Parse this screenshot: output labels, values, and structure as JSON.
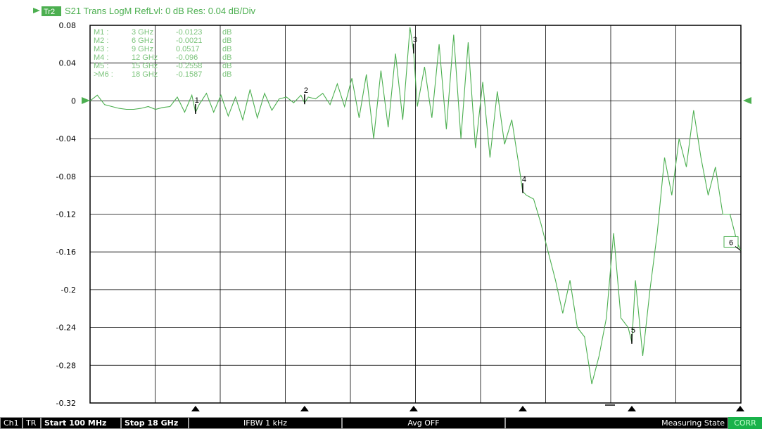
{
  "trace": {
    "badge": "Tr2",
    "title": "S21 Trans LogM RefLvl: 0 dB Res: 0.04 dB/Div"
  },
  "markers": [
    {
      "id": "1",
      "label": "M1 :",
      "freq": "3 GHz",
      "value": "-0.0123",
      "unit": "dB"
    },
    {
      "id": "2",
      "label": "M2 :",
      "freq": "6 GHz",
      "value": "-0.0021",
      "unit": "dB"
    },
    {
      "id": "3",
      "label": "M3 :",
      "freq": "9 GHz",
      "value": "0.0517",
      "unit": "dB"
    },
    {
      "id": "4",
      "label": "M4 :",
      "freq": "12 GHz",
      "value": "-0.096",
      "unit": "dB"
    },
    {
      "id": "5",
      "label": "M5 :",
      "freq": "15 GHz",
      "value": "-0.2558",
      "unit": "dB"
    },
    {
      "id": "6",
      "label": ">M6 :",
      "freq": "18 GHz",
      "value": "-0.1587",
      "unit": "dB"
    }
  ],
  "status_bar": {
    "channel": "Ch1",
    "trace_mode": "TR",
    "start": "Start 100 MHz",
    "stop": "Stop 18 GHz",
    "ifbw": "IFBW 1 kHz",
    "avg": "Avg OFF",
    "state": "Measuring State",
    "corr": "CORR"
  },
  "colors": {
    "trace": "#4caf50",
    "grid": "#000000",
    "background": "#ffffff",
    "status_bg": "#000000",
    "corr_bg": "#19b24a"
  },
  "chart_data": {
    "type": "line",
    "title": "S21 Trans LogM RefLvl: 0 dB Res: 0.04 dB/Div",
    "xlabel": "",
    "ylabel": "",
    "xlim": [
      0.1,
      18
    ],
    "ylim": [
      -0.32,
      0.08
    ],
    "y_ticks": [
      "0.08",
      "0.04",
      "0",
      "-0.04",
      "-0.08",
      "-0.12",
      "-0.16",
      "-0.2",
      "-0.24",
      "-0.28",
      "-0.32"
    ],
    "grid": true,
    "x_divisions": 10,
    "reference_level": 0,
    "series": [
      {
        "color": "#4caf50",
        "x": [
          0.1,
          0.3,
          0.5,
          0.7,
          0.9,
          1.1,
          1.3,
          1.5,
          1.7,
          1.9,
          2.1,
          2.3,
          2.5,
          2.7,
          2.9,
          3.0,
          3.1,
          3.3,
          3.5,
          3.7,
          3.9,
          4.1,
          4.3,
          4.5,
          4.7,
          4.9,
          5.1,
          5.3,
          5.5,
          5.7,
          5.9,
          6.0,
          6.1,
          6.3,
          6.5,
          6.7,
          6.9,
          7.1,
          7.3,
          7.5,
          7.7,
          7.9,
          8.1,
          8.3,
          8.5,
          8.7,
          8.9,
          9.0,
          9.1,
          9.3,
          9.5,
          9.7,
          9.9,
          10.1,
          10.3,
          10.5,
          10.7,
          10.9,
          11.1,
          11.3,
          11.5,
          11.7,
          11.9,
          12.0,
          12.1,
          12.3,
          12.5,
          12.7,
          12.9,
          13.1,
          13.3,
          13.5,
          13.7,
          13.9,
          14.1,
          14.3,
          14.5,
          14.7,
          14.9,
          15.0,
          15.1,
          15.3,
          15.5,
          15.7,
          15.9,
          16.1,
          16.3,
          16.5,
          16.7,
          16.9,
          17.1,
          17.3,
          17.5,
          17.7,
          17.9,
          18.0
        ],
        "values": [
          0.0,
          0.006,
          -0.004,
          -0.006,
          -0.008,
          -0.009,
          -0.009,
          -0.008,
          -0.006,
          -0.009,
          -0.007,
          -0.006,
          0.004,
          -0.012,
          0.006,
          -0.0123,
          -0.004,
          0.008,
          -0.012,
          0.006,
          -0.016,
          0.004,
          -0.02,
          0.012,
          -0.018,
          0.008,
          -0.01,
          0.002,
          0.004,
          -0.002,
          0.006,
          -0.0021,
          0.004,
          0.002,
          0.008,
          -0.004,
          0.018,
          -0.006,
          0.024,
          -0.018,
          0.028,
          -0.04,
          0.032,
          -0.028,
          0.05,
          -0.02,
          0.078,
          0.0517,
          -0.006,
          0.036,
          -0.018,
          0.06,
          -0.03,
          0.07,
          -0.04,
          0.062,
          -0.05,
          0.02,
          -0.06,
          0.01,
          -0.046,
          -0.02,
          -0.07,
          -0.096,
          -0.1,
          -0.104,
          -0.13,
          -0.16,
          -0.19,
          -0.225,
          -0.19,
          -0.24,
          -0.25,
          -0.3,
          -0.27,
          -0.23,
          -0.14,
          -0.23,
          -0.24,
          -0.2558,
          -0.19,
          -0.27,
          -0.2,
          -0.14,
          -0.06,
          -0.1,
          -0.04,
          -0.07,
          -0.01,
          -0.06,
          -0.1,
          -0.07,
          -0.12,
          -0.12,
          -0.15,
          -0.1587
        ]
      }
    ],
    "marker_points": [
      {
        "id": "1",
        "x": 3,
        "y": -0.0123
      },
      {
        "id": "2",
        "x": 6,
        "y": -0.0021
      },
      {
        "id": "3",
        "x": 9,
        "y": 0.0517
      },
      {
        "id": "4",
        "x": 12,
        "y": -0.096
      },
      {
        "id": "5",
        "x": 15,
        "y": -0.2558
      },
      {
        "id": "6",
        "x": 18,
        "y": -0.1587
      }
    ]
  }
}
